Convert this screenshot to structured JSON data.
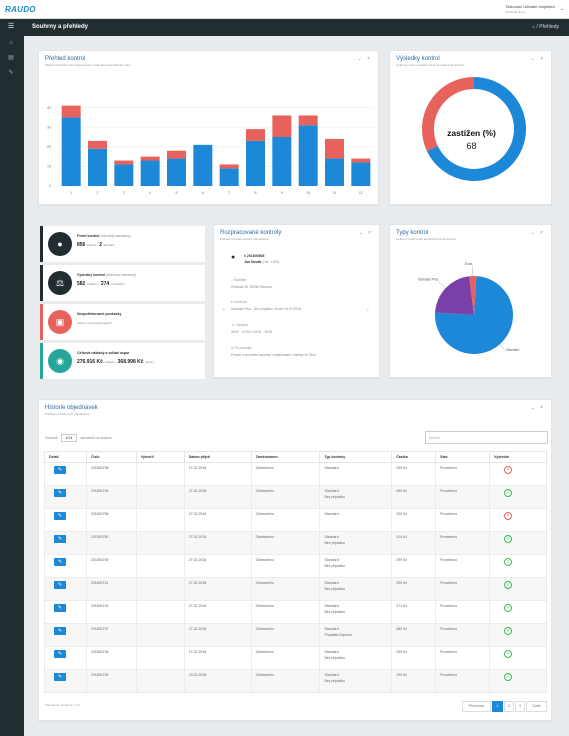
{
  "app": {
    "logo": "RAUDO",
    "user_name": "Testovací Uživatel Inspektor",
    "user_sub": "Testovací firma",
    "page_title": "Souhrny a přehledy",
    "breadcrumb": "Přehledy"
  },
  "sidebar": {
    "icons": [
      "menu-icon",
      "home-icon",
      "document-icon",
      "edit-icon"
    ]
  },
  "overview": {
    "title": "Přehled kontrol",
    "subtitle": "Měsíční přehled počtu objednávek a výsledků kalendářního roku",
    "chart_data": {
      "type": "bar",
      "stacked": true,
      "categories": [
        "1",
        "2",
        "3",
        "4",
        "5",
        "6",
        "7",
        "8",
        "9",
        "10",
        "11",
        "12"
      ],
      "series": [
        {
          "values": [
            35,
            19,
            11,
            13,
            14,
            21,
            9,
            23,
            25,
            31,
            14,
            12
          ],
          "color": "#1e88d8"
        },
        {
          "values": [
            6,
            4,
            2,
            2,
            4,
            0,
            2,
            6,
            11,
            5,
            10,
            2
          ],
          "color": "#e8625d"
        }
      ],
      "ylim": [
        0,
        50
      ],
      "yticks": [
        "0",
        "10",
        "20",
        "30",
        "40"
      ]
    }
  },
  "results": {
    "title": "Výsledky kontrol",
    "subtitle": "Celkový počet výsledků všech provedených kontrol",
    "center_label": "zastižen (%)",
    "center_value": "68",
    "chart_data": {
      "type": "pie",
      "slices": [
        {
          "label": "zastižen",
          "value": 68,
          "color": "#1e88d8"
        },
        {
          "label": "",
          "value": 32,
          "color": "#e8625d"
        }
      ]
    }
  },
  "cards": [
    {
      "title": "Počet kontrol",
      "title_note": "(všechny záznamy)",
      "v1": "856",
      "v1_note": "celkem /",
      "v2": "2",
      "v2_note": "aktuálně",
      "color": "#222d32",
      "icon": "user-icon"
    },
    {
      "title": "Výsledky kontrol",
      "title_note": "(všechny záznamy)",
      "v1": "582",
      "v1_note": "zastižen /",
      "v2": "274",
      "v2_note": "nezastižen",
      "color": "#222d32",
      "icon": "scales-icon"
    },
    {
      "title": "Nespotřebované poukázky",
      "title_note": "",
      "v1": "",
      "v1_note": "celkem nespotřebovaných",
      "v2": "",
      "v2_note": "",
      "color": "#e8625d",
      "icon": "wallet-icon"
    },
    {
      "title": "Celková náklady a odhad úspor",
      "title_note": "",
      "v1": "276.916 Kč",
      "v1_note": "náklady /",
      "v2": "368.998 Kč",
      "v2_note": "úspory",
      "color": "#26a69a",
      "icon": "coins-icon"
    }
  ],
  "pending": {
    "title": "Rozpracované kontroly",
    "subtitle": "Přehled rozpracovaných objednávek",
    "id": "# 201800808",
    "name": "Jan Novák",
    "name_note": "(nar. 1985)",
    "address_label": "Bydliště",
    "address": "Švédská 18, 28906 Olomouc",
    "contact_label": "Kontrola",
    "contact": "Standard Plus - Bez příplatku, ze dne 16.07.2018",
    "time_label": "Spojení",
    "time": "09:00 - 10:00 a 14:00 - 15:00",
    "note_label": "Poznámka",
    "note": "Prosím o provedení kontroly u objednatele z fabriky ve Zlínu"
  },
  "types": {
    "title": "Typy kontrol",
    "subtitle": "Celkový počet podle jednotlivých typů kontrol",
    "chart_data": {
      "type": "pie",
      "slices": [
        {
          "label": "Standard",
          "value": 75,
          "color": "#1e88d8"
        },
        {
          "label": "Standard Plus",
          "value": 22,
          "color": "#7b3fa8"
        },
        {
          "label": "Extra",
          "value": 3,
          "color": "#e8625d"
        }
      ]
    }
  },
  "history": {
    "title": "Historie objednávek",
    "subtitle": "Přehled provedených objednávek",
    "show_label": "Zobrazit",
    "page_size": "10",
    "entries_label": "záznamů na stránce",
    "search_placeholder": "Search...",
    "columns": [
      "Detail",
      "Číslo",
      "Vytvořil",
      "Datum přijetí",
      "Zaměstnanec",
      "Typ kontroly",
      "Částka",
      "Stav",
      "Výsledek"
    ],
    "rows": [
      {
        "no": "201800798",
        "created": "",
        "date": "27.02.2018",
        "emp": "Odstraněno",
        "type": "Standard",
        "type2": "",
        "amount": "299 Kč",
        "state": "Provedeno",
        "result": "fail"
      },
      {
        "no": "201800794",
        "created": "",
        "date": "27.02.2018",
        "emp": "Odstraněno",
        "type": "Standard",
        "type2": "Bez příplatku",
        "amount": "499 Kč",
        "state": "Provedeno",
        "result": "ok"
      },
      {
        "no": "201800786",
        "created": "",
        "date": "27.02.2018",
        "emp": "Odstraněno",
        "type": "Standard",
        "type2": "",
        "amount": "299 Kč",
        "state": "Provedeno",
        "result": "fail"
      },
      {
        "no": "201800780",
        "created": "",
        "date": "27.02.2018",
        "emp": "Odstraněno",
        "type": "Standard",
        "type2": "Bez příplatku",
        "amount": "314 Kč",
        "state": "Provedeno",
        "result": "ok"
      },
      {
        "no": "201800769",
        "created": "",
        "date": "27.02.2018",
        "emp": "Odstraněno",
        "type": "Standard",
        "type2": "Bez příplatku",
        "amount": "299 Kč",
        "state": "Provedeno",
        "result": "ok"
      },
      {
        "no": "201800741",
        "created": "",
        "date": "27.02.2018",
        "emp": "Odstraněno",
        "type": "Standard",
        "type2": "Bez příplatku",
        "amount": "299 Kč",
        "state": "Provedeno",
        "result": "ok"
      },
      {
        "no": "201800744",
        "created": "",
        "date": "27.02.2018",
        "emp": "Odstraněno",
        "type": "Standard",
        "type2": "Bez příplatku",
        "amount": "371 Kč",
        "state": "Provedeno",
        "result": "ok"
      },
      {
        "no": "201800737",
        "created": "",
        "date": "27.02.2018",
        "emp": "Odstraněno",
        "type": "Standard",
        "type2": "Příplatek Express",
        "amount": "489 Kč",
        "state": "Provedeno",
        "result": "ok"
      },
      {
        "no": "201800736",
        "created": "",
        "date": "27.02.2018",
        "emp": "Odstraněno",
        "type": "Standard",
        "type2": "Bez příplatku",
        "amount": "299 Kč",
        "state": "Provedeno",
        "result": "ok"
      },
      {
        "no": "201800734",
        "created": "",
        "date": "20.02.2018",
        "emp": "Odstraněno",
        "type": "Standard",
        "type2": "Bez příplatku",
        "amount": "299 Kč",
        "state": "Provedeno",
        "result": "ok"
      }
    ],
    "footer": "Zobrazeno záznamů 1 z 9",
    "pagination": {
      "prev": "Předchozí",
      "pages": [
        "1",
        "2",
        "3"
      ],
      "next": "Další"
    }
  },
  "colors": {
    "accent": "#1e88d8",
    "danger": "#e8625d",
    "success": "#3cba54",
    "dark": "#222d32"
  }
}
